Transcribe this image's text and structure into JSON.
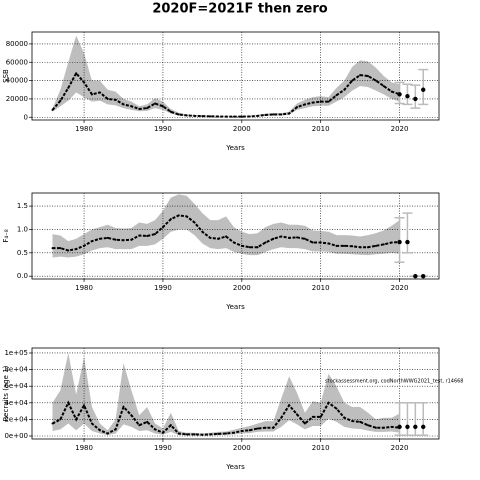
{
  "title": "2020F=2021F then zero",
  "chart_data": [
    {
      "type": "line",
      "ylabel": "SSB",
      "xlabel": "Years",
      "xlim": [
        1973.4,
        2025
      ],
      "xticks": [
        1980,
        1990,
        2000,
        2010,
        2020
      ],
      "ylim": [
        -3000,
        93000
      ],
      "yticks": [
        0,
        20000,
        40000,
        60000,
        80000
      ],
      "grid": true,
      "color": "#000000",
      "band_color": "#bebebe",
      "bar_color": "#bbbbbb",
      "x": [
        1976,
        1977,
        1978,
        1979,
        1980,
        1981,
        1982,
        1983,
        1984,
        1985,
        1986,
        1987,
        1988,
        1989,
        1990,
        1991,
        1992,
        1993,
        1994,
        1995,
        1996,
        1997,
        1998,
        1999,
        2000,
        2001,
        2002,
        2003,
        2004,
        2005,
        2006,
        2007,
        2008,
        2009,
        2010,
        2011,
        2012,
        2013,
        2014,
        2015,
        2016,
        2017,
        2018,
        2019,
        2020
      ],
      "values": [
        8000,
        18000,
        32000,
        48000,
        38000,
        25000,
        27000,
        20000,
        19000,
        14000,
        12000,
        9000,
        10000,
        15000,
        12000,
        6000,
        3000,
        2000,
        1500,
        1200,
        1000,
        800,
        700,
        700,
        700,
        800,
        1500,
        2500,
        3000,
        3000,
        4000,
        11000,
        14000,
        16000,
        17000,
        17000,
        24000,
        30000,
        40000,
        46000,
        45000,
        40000,
        34000,
        28000,
        25000
      ],
      "upper": [
        10000,
        30000,
        60000,
        89000,
        70000,
        40000,
        40000,
        30000,
        28000,
        20000,
        17000,
        12000,
        14000,
        21000,
        17000,
        9000,
        5000,
        3000,
        2500,
        2000,
        1800,
        1500,
        1400,
        1400,
        1400,
        1600,
        2500,
        4000,
        4500,
        4500,
        6000,
        15000,
        19000,
        22000,
        23000,
        22000,
        32000,
        40000,
        55000,
        62000,
        61000,
        54000,
        45000,
        38000,
        36000
      ],
      "lower": [
        6000,
        12000,
        18000,
        27000,
        22000,
        17000,
        18000,
        14000,
        13000,
        10000,
        8000,
        6500,
        7000,
        10000,
        8000,
        4000,
        2000,
        1300,
        1000,
        800,
        600,
        500,
        400,
        400,
        400,
        500,
        900,
        1600,
        2000,
        2000,
        2800,
        8000,
        10000,
        12000,
        12500,
        12500,
        17000,
        22000,
        29000,
        34000,
        33000,
        29000,
        25000,
        20000,
        17000
      ],
      "forecast": {
        "x": [
          2020,
          2021,
          2022,
          2023
        ],
        "values": [
          25000,
          23000,
          20000,
          30000
        ],
        "lower": [
          15000,
          14000,
          10000,
          14000
        ],
        "upper": [
          38000,
          36000,
          35000,
          52000
        ]
      }
    },
    {
      "type": "line",
      "ylabel": "F₄₋₈",
      "xlabel": "Years",
      "xlim": [
        1973.4,
        2025
      ],
      "xticks": [
        1980,
        1990,
        2000,
        2010,
        2020
      ],
      "ylim": [
        -0.06,
        1.78
      ],
      "yticks": [
        {
          "value": 0,
          "label": "0.0"
        },
        {
          "value": 0.5,
          "label": "0.5"
        },
        {
          "value": 1,
          "label": "1.0"
        },
        1.5
      ],
      "grid": true,
      "color": "#000000",
      "band_color": "#bebebe",
      "bar_color": "#bbbbbb",
      "x": [
        1976,
        1977,
        1978,
        1979,
        1980,
        1981,
        1982,
        1983,
        1984,
        1985,
        1986,
        1987,
        1988,
        1989,
        1990,
        1991,
        1992,
        1993,
        1994,
        1995,
        1996,
        1997,
        1998,
        1999,
        2000,
        2001,
        2002,
        2003,
        2004,
        2005,
        2006,
        2007,
        2008,
        2009,
        2010,
        2011,
        2012,
        2013,
        2014,
        2015,
        2016,
        2017,
        2018,
        2019,
        2020
      ],
      "values": [
        0.6,
        0.6,
        0.55,
        0.58,
        0.65,
        0.75,
        0.8,
        0.82,
        0.78,
        0.77,
        0.78,
        0.87,
        0.86,
        0.9,
        1.05,
        1.22,
        1.3,
        1.28,
        1.15,
        0.95,
        0.82,
        0.8,
        0.85,
        0.72,
        0.65,
        0.62,
        0.62,
        0.72,
        0.8,
        0.85,
        0.82,
        0.83,
        0.8,
        0.72,
        0.72,
        0.7,
        0.65,
        0.65,
        0.64,
        0.62,
        0.62,
        0.65,
        0.68,
        0.72,
        0.73
      ],
      "upper": [
        0.9,
        0.87,
        0.75,
        0.8,
        0.9,
        1.0,
        1.05,
        1.1,
        1.03,
        1.02,
        1.03,
        1.15,
        1.12,
        1.2,
        1.4,
        1.68,
        1.75,
        1.72,
        1.55,
        1.35,
        1.2,
        1.2,
        1.28,
        1.05,
        0.95,
        0.9,
        0.92,
        1.05,
        1.12,
        1.15,
        1.1,
        1.1,
        1.08,
        0.98,
        0.97,
        0.95,
        0.88,
        0.88,
        0.87,
        0.85,
        0.88,
        0.92,
        0.98,
        1.08,
        1.2
      ],
      "lower": [
        0.4,
        0.42,
        0.4,
        0.42,
        0.47,
        0.55,
        0.6,
        0.62,
        0.58,
        0.58,
        0.58,
        0.65,
        0.65,
        0.68,
        0.8,
        0.95,
        1.0,
        1.0,
        0.88,
        0.7,
        0.6,
        0.58,
        0.6,
        0.52,
        0.48,
        0.45,
        0.45,
        0.52,
        0.58,
        0.62,
        0.6,
        0.6,
        0.58,
        0.53,
        0.53,
        0.52,
        0.48,
        0.48,
        0.47,
        0.46,
        0.45,
        0.47,
        0.48,
        0.5,
        0.48
      ],
      "forecast": {
        "x": [
          2020,
          2021,
          2022,
          2023
        ],
        "values": [
          0.73,
          0.73,
          0,
          0
        ],
        "lower": [
          0.3,
          0.5,
          0,
          0
        ],
        "upper": [
          1.25,
          1.35,
          0,
          0
        ]
      }
    },
    {
      "type": "line",
      "ylabel": "Recruits (age 1)",
      "xlabel": "Years",
      "xlim": [
        1973.4,
        2025
      ],
      "xticks": [
        1980,
        1990,
        2000,
        2010,
        2020
      ],
      "ylim": [
        -3600,
        106000
      ],
      "yticks": [
        {
          "value": 0,
          "label": "0e+00"
        },
        {
          "value": 20000,
          "label": "2e+04"
        },
        {
          "value": 40000,
          "label": "4e+04"
        },
        {
          "value": 60000,
          "label": "6e+04"
        },
        {
          "value": 80000,
          "label": "8e+04"
        },
        {
          "value": 100000,
          "label": "1e+05"
        }
      ],
      "grid": true,
      "color": "#000000",
      "band_color": "#bebebe",
      "bar_color": "#bbbbbb",
      "annotation": "stockassessment.org, codNorthWWG2021_test, r14668",
      "x": [
        1976,
        1977,
        1978,
        1979,
        1980,
        1981,
        1982,
        1983,
        1984,
        1985,
        1986,
        1987,
        1988,
        1989,
        1990,
        1991,
        1992,
        1993,
        1994,
        1995,
        1996,
        1997,
        1998,
        1999,
        2000,
        2001,
        2002,
        2003,
        2004,
        2005,
        2006,
        2007,
        2008,
        2009,
        2010,
        2011,
        2012,
        2013,
        2014,
        2015,
        2016,
        2017,
        2018,
        2019,
        2020
      ],
      "values": [
        15000,
        20000,
        40000,
        20000,
        37000,
        15000,
        7000,
        3000,
        8000,
        35000,
        25000,
        13000,
        17000,
        8000,
        4000,
        13000,
        3000,
        2000,
        2000,
        1500,
        2000,
        2500,
        3000,
        4000,
        6000,
        7000,
        9000,
        10000,
        10000,
        22000,
        37000,
        26000,
        15000,
        23000,
        23000,
        40000,
        33000,
        22000,
        18000,
        17000,
        13000,
        10000,
        10000,
        11000,
        10000
      ],
      "upper": [
        40000,
        55000,
        100000,
        50000,
        95000,
        35000,
        15000,
        7000,
        20000,
        88000,
        55000,
        25000,
        35000,
        15000,
        9000,
        28000,
        6000,
        4000,
        4000,
        3000,
        4000,
        5000,
        5500,
        7500,
        10000,
        12000,
        15000,
        18000,
        18000,
        45000,
        72000,
        52000,
        28000,
        42000,
        40000,
        75000,
        60000,
        40000,
        35000,
        35000,
        28000,
        20000,
        22000,
        22000,
        27000
      ],
      "lower": [
        6000,
        8000,
        15000,
        7000,
        15000,
        6000,
        3000,
        1000,
        3000,
        14000,
        11000,
        6000,
        7000,
        3000,
        1500,
        5000,
        1000,
        800,
        800,
        600,
        800,
        1000,
        1300,
        1800,
        3000,
        3500,
        5000,
        5500,
        5500,
        11000,
        19000,
        14000,
        8000,
        12000,
        12000,
        21000,
        17000,
        11000,
        9000,
        8500,
        6500,
        5000,
        5000,
        5500,
        4000
      ],
      "forecast": {
        "x": [
          2020,
          2021,
          2022,
          2023
        ],
        "values": [
          11000,
          11000,
          11000,
          11000
        ],
        "lower": [
          1000,
          1000,
          1000,
          1000
        ],
        "upper": [
          40000,
          40000,
          40000,
          40000
        ]
      }
    }
  ]
}
